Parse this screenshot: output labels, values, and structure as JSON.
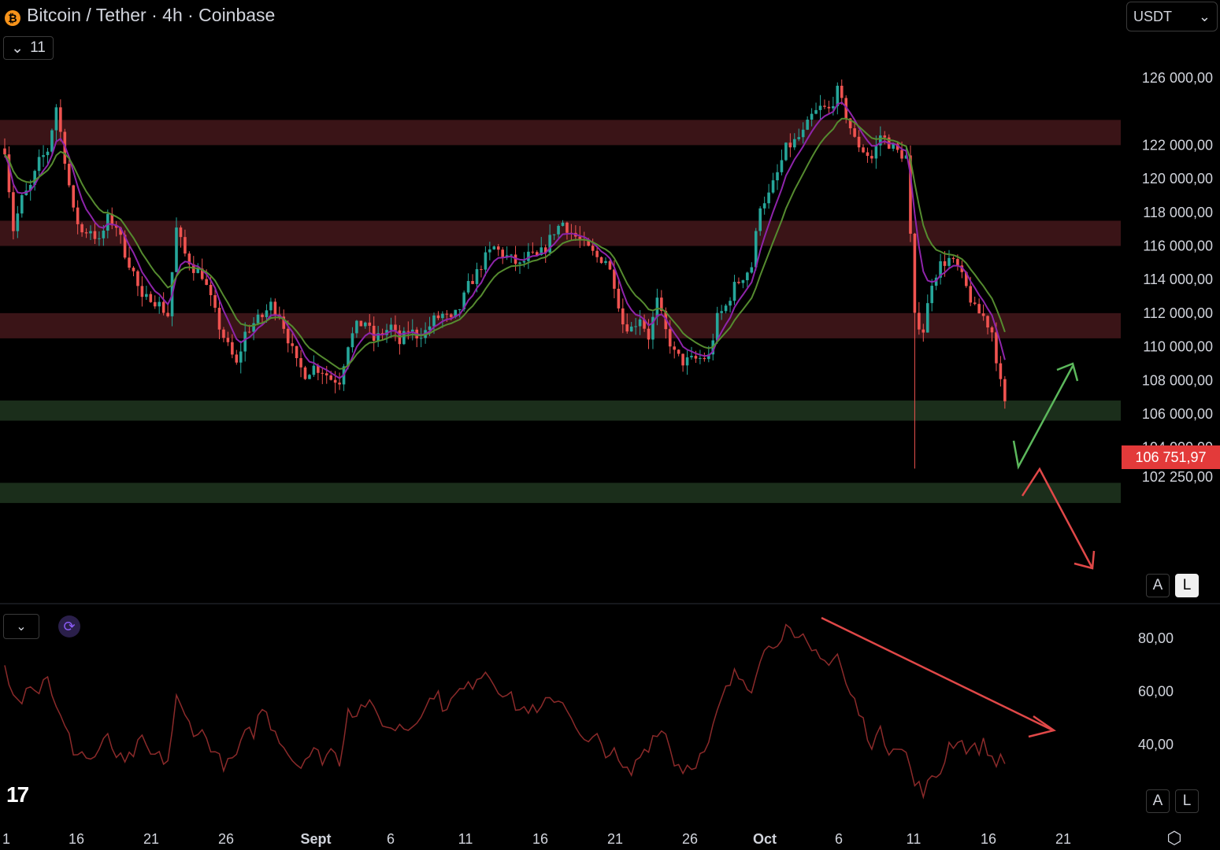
{
  "header": {
    "title": "Bitcoin / Tether · 4h · Coinbase",
    "indicator_count": "11",
    "currency": "USDT"
  },
  "price_axis": {
    "labels": [
      "126 000,00",
      "122 000,00",
      "120 000,00",
      "118 000,00",
      "116 000,00",
      "114 000,00",
      "112 000,00",
      "110 000,00",
      "108 000,00",
      "106 000,00",
      "104 000,00",
      "102 250,00"
    ],
    "values": [
      126000,
      122000,
      120000,
      118000,
      116000,
      114000,
      112000,
      110000,
      108000,
      106000,
      104000,
      102250
    ],
    "last_price_label": "106 751,97",
    "last_price": 106751.97
  },
  "rsi_axis": {
    "labels": [
      "80,00",
      "60,00",
      "40,00"
    ],
    "values": [
      80,
      60,
      40
    ]
  },
  "time_axis": {
    "labels": [
      "1",
      "16",
      "21",
      "26",
      "Sept",
      "6",
      "11",
      "16",
      "21",
      "26",
      "Oct",
      "6",
      "11",
      "16",
      "21"
    ]
  },
  "scale_buttons": {
    "auto": "A",
    "log": "L"
  },
  "colors": {
    "background": "#000000",
    "resistance_zone": "#3a1417",
    "support_zone": "#1b2e1b",
    "up_candle": "#26a69a",
    "down_candle": "#ef5350",
    "ema_fast": "#8e24aa",
    "ema_slow": "#558b2f",
    "rsi_line": "#8b2a2a",
    "arrow_up": "#5cb85c",
    "arrow_down": "#e04848",
    "price_tag": "#e33a3a"
  },
  "zones": {
    "resistance": [
      [
        122000,
        123500
      ],
      [
        116000,
        117500
      ],
      [
        110500,
        112000
      ]
    ],
    "support": [
      [
        105600,
        106800
      ],
      [
        100700,
        101900
      ]
    ]
  },
  "chart_data": {
    "type": "candlestick",
    "title": "Bitcoin / Tether · 4h · Coinbase",
    "price_path": [
      [
        0,
        121800
      ],
      [
        2,
        117000
      ],
      [
        4,
        118800
      ],
      [
        6,
        119500
      ],
      [
        8,
        121000
      ],
      [
        10,
        121700
      ],
      [
        12,
        124300
      ],
      [
        14,
        121200
      ],
      [
        16,
        118000
      ],
      [
        18,
        116800
      ],
      [
        20,
        117000
      ],
      [
        22,
        116200
      ],
      [
        24,
        117600
      ],
      [
        26,
        117200
      ],
      [
        28,
        115600
      ],
      [
        30,
        114400
      ],
      [
        32,
        112700
      ],
      [
        34,
        113000
      ],
      [
        36,
        112500
      ],
      [
        38,
        111900
      ],
      [
        40,
        117000
      ],
      [
        42,
        115500
      ],
      [
        44,
        114700
      ],
      [
        46,
        114300
      ],
      [
        48,
        112800
      ],
      [
        50,
        111200
      ],
      [
        52,
        110000
      ],
      [
        54,
        108900
      ],
      [
        56,
        110800
      ],
      [
        58,
        111400
      ],
      [
        60,
        111800
      ],
      [
        62,
        112500
      ],
      [
        64,
        112000
      ],
      [
        66,
        110500
      ],
      [
        68,
        109000
      ],
      [
        70,
        108400
      ],
      [
        72,
        108800
      ],
      [
        74,
        108600
      ],
      [
        76,
        108100
      ],
      [
        78,
        108000
      ],
      [
        80,
        110200
      ],
      [
        82,
        111200
      ],
      [
        84,
        111500
      ],
      [
        86,
        110400
      ],
      [
        88,
        110800
      ],
      [
        90,
        111200
      ],
      [
        92,
        110200
      ],
      [
        94,
        111000
      ],
      [
        96,
        110700
      ],
      [
        98,
        110900
      ],
      [
        100,
        111600
      ],
      [
        102,
        111900
      ],
      [
        104,
        111500
      ],
      [
        106,
        112300
      ],
      [
        108,
        113600
      ],
      [
        110,
        114400
      ],
      [
        112,
        115300
      ],
      [
        114,
        115900
      ],
      [
        116,
        115500
      ],
      [
        118,
        115200
      ],
      [
        120,
        114800
      ],
      [
        122,
        115400
      ],
      [
        124,
        115300
      ],
      [
        126,
        115900
      ],
      [
        128,
        116900
      ],
      [
        130,
        117400
      ],
      [
        132,
        116800
      ],
      [
        134,
        116300
      ],
      [
        136,
        115800
      ],
      [
        138,
        115300
      ],
      [
        140,
        115200
      ],
      [
        142,
        113800
      ],
      [
        144,
        111400
      ],
      [
        146,
        111100
      ],
      [
        148,
        111800
      ],
      [
        150,
        110600
      ],
      [
        152,
        112700
      ],
      [
        154,
        110900
      ],
      [
        156,
        109600
      ],
      [
        158,
        109100
      ],
      [
        160,
        109200
      ],
      [
        162,
        109300
      ],
      [
        164,
        109400
      ],
      [
        166,
        111700
      ],
      [
        168,
        112400
      ],
      [
        170,
        113600
      ],
      [
        172,
        114200
      ],
      [
        174,
        114800
      ],
      [
        176,
        118500
      ],
      [
        178,
        119000
      ],
      [
        180,
        120300
      ],
      [
        182,
        121800
      ],
      [
        184,
        122200
      ],
      [
        186,
        122700
      ],
      [
        188,
        123700
      ],
      [
        190,
        124200
      ],
      [
        192,
        124100
      ],
      [
        194,
        125200
      ],
      [
        196,
        123800
      ],
      [
        198,
        122300
      ],
      [
        200,
        121700
      ],
      [
        202,
        121200
      ],
      [
        204,
        122600
      ],
      [
        206,
        122100
      ],
      [
        208,
        121600
      ],
      [
        210,
        121300
      ],
      [
        212,
        111700
      ],
      [
        214,
        111000
      ],
      [
        216,
        113900
      ],
      [
        218,
        114900
      ],
      [
        220,
        115200
      ],
      [
        222,
        114700
      ],
      [
        224,
        113500
      ],
      [
        226,
        112200
      ],
      [
        228,
        111800
      ],
      [
        230,
        110900
      ],
      [
        232,
        107800
      ],
      [
        233,
        106752
      ]
    ],
    "rsi_path": [
      [
        0,
        70
      ],
      [
        2,
        61
      ],
      [
        4,
        58
      ],
      [
        6,
        64
      ],
      [
        8,
        60
      ],
      [
        10,
        67
      ],
      [
        12,
        53
      ],
      [
        14,
        46
      ],
      [
        16,
        38
      ],
      [
        18,
        37
      ],
      [
        20,
        34
      ],
      [
        22,
        38
      ],
      [
        24,
        42
      ],
      [
        26,
        36
      ],
      [
        28,
        32
      ],
      [
        30,
        37
      ],
      [
        32,
        41
      ],
      [
        34,
        36
      ],
      [
        36,
        35
      ],
      [
        38,
        34
      ],
      [
        40,
        57
      ],
      [
        42,
        50
      ],
      [
        44,
        46
      ],
      [
        46,
        44
      ],
      [
        48,
        40
      ],
      [
        50,
        34
      ],
      [
        52,
        32
      ],
      [
        54,
        36
      ],
      [
        56,
        43
      ],
      [
        58,
        45
      ],
      [
        60,
        54
      ],
      [
        62,
        48
      ],
      [
        64,
        43
      ],
      [
        66,
        37
      ],
      [
        68,
        33
      ],
      [
        70,
        35
      ],
      [
        72,
        37
      ],
      [
        74,
        35
      ],
      [
        76,
        38
      ],
      [
        78,
        34
      ],
      [
        80,
        54
      ],
      [
        82,
        52
      ],
      [
        84,
        56
      ],
      [
        86,
        52
      ],
      [
        88,
        49
      ],
      [
        90,
        45
      ],
      [
        92,
        48
      ],
      [
        94,
        46
      ],
      [
        96,
        51
      ],
      [
        98,
        53
      ],
      [
        100,
        60
      ],
      [
        102,
        55
      ],
      [
        104,
        56
      ],
      [
        106,
        60
      ],
      [
        108,
        61
      ],
      [
        110,
        66
      ],
      [
        112,
        68
      ],
      [
        114,
        64
      ],
      [
        116,
        60
      ],
      [
        118,
        57
      ],
      [
        120,
        53
      ],
      [
        122,
        54
      ],
      [
        124,
        51
      ],
      [
        126,
        55
      ],
      [
        128,
        58
      ],
      [
        130,
        56
      ],
      [
        132,
        52
      ],
      [
        134,
        42
      ],
      [
        136,
        40
      ],
      [
        138,
        42
      ],
      [
        140,
        38
      ],
      [
        142,
        36
      ],
      [
        144,
        30
      ],
      [
        146,
        29
      ],
      [
        148,
        36
      ],
      [
        150,
        40
      ],
      [
        152,
        46
      ],
      [
        154,
        44
      ],
      [
        156,
        34
      ],
      [
        158,
        31
      ],
      [
        160,
        33
      ],
      [
        162,
        35
      ],
      [
        164,
        39
      ],
      [
        166,
        52
      ],
      [
        168,
        60
      ],
      [
        170,
        66
      ],
      [
        172,
        65
      ],
      [
        174,
        62
      ],
      [
        176,
        74
      ],
      [
        178,
        76
      ],
      [
        180,
        80
      ],
      [
        182,
        84
      ],
      [
        184,
        78
      ],
      [
        186,
        79
      ],
      [
        188,
        75
      ],
      [
        190,
        75
      ],
      [
        192,
        70
      ],
      [
        194,
        74
      ],
      [
        196,
        62
      ],
      [
        198,
        56
      ],
      [
        200,
        48
      ],
      [
        202,
        41
      ],
      [
        204,
        44
      ],
      [
        206,
        39
      ],
      [
        208,
        41
      ],
      [
        210,
        36
      ],
      [
        212,
        25
      ],
      [
        214,
        23
      ],
      [
        216,
        26
      ],
      [
        218,
        30
      ],
      [
        220,
        40
      ],
      [
        222,
        42
      ],
      [
        224,
        39
      ],
      [
        226,
        38
      ],
      [
        228,
        40
      ],
      [
        230,
        35
      ],
      [
        232,
        34
      ],
      [
        233,
        32
      ]
    ],
    "x_count": 234,
    "ylim": [
      100000,
      128000
    ],
    "rsi_ylim": [
      20,
      90
    ],
    "grid": false
  }
}
